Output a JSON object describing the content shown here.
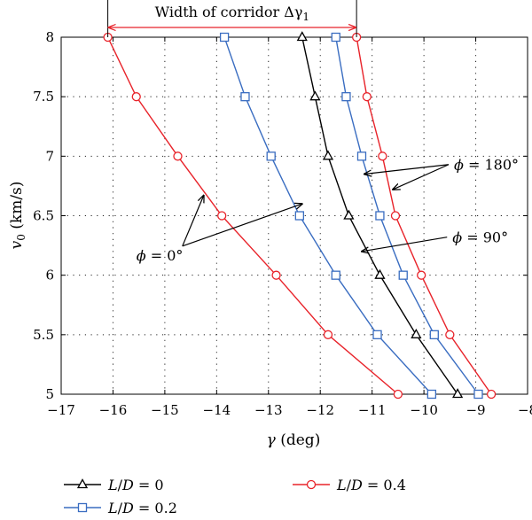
{
  "chart_data": {
    "type": "line",
    "xlabel_symbol": "γ",
    "xlabel_unit": " (deg)",
    "ylabel_symbol": "v",
    "ylabel_sub": "0",
    "ylabel_unit": " (km/s)",
    "xlim": [
      -17,
      -8
    ],
    "ylim": [
      5,
      8
    ],
    "xticks": [
      -17,
      -16,
      -15,
      -14,
      -13,
      -12,
      -11,
      -10,
      -9,
      -8
    ],
    "yticks": [
      5,
      5.5,
      6,
      6.5,
      7,
      7.5,
      8
    ],
    "xtick_labels": [
      "−17",
      "−16",
      "−15",
      "−14",
      "−13",
      "−12",
      "−11",
      "−10",
      "−9",
      "−8"
    ],
    "ytick_labels": [
      "5",
      "5.5",
      "6",
      "6.5",
      "7",
      "7.5",
      "8"
    ],
    "grid": true,
    "legend_position": "bottom",
    "series": [
      {
        "name": "L/D = 0",
        "name_parts": {
          "a": "L",
          "b": "/",
          "c": "D",
          "d": " = 0"
        },
        "color": "#000000",
        "marker": "triangle",
        "curves": [
          {
            "x": [
              -12.35,
              -12.1,
              -11.85,
              -11.45,
              -10.85,
              -10.15,
              -9.35
            ],
            "y": [
              8,
              7.5,
              7,
              6.5,
              6,
              5.5,
              5
            ]
          }
        ]
      },
      {
        "name": "L/D = 0.2",
        "name_parts": {
          "a": "L",
          "b": "/",
          "c": "D",
          "d": " = 0.2"
        },
        "color": "#3a6dc1",
        "marker": "square",
        "curves": [
          {
            "x": [
              -13.85,
              -13.45,
              -12.95,
              -12.4,
              -11.7,
              -10.9,
              -9.85
            ],
            "y": [
              8,
              7.5,
              7,
              6.5,
              6,
              5.5,
              5
            ]
          },
          {
            "x": [
              -11.7,
              -11.5,
              -11.2,
              -10.85,
              -10.4,
              -9.8,
              -8.95
            ],
            "y": [
              8,
              7.5,
              7,
              6.5,
              6,
              5.5,
              5
            ]
          }
        ]
      },
      {
        "name": "L/D = 0.4",
        "name_parts": {
          "a": "L",
          "b": "/",
          "c": "D",
          "d": " = 0.4"
        },
        "color": "#e8232a",
        "marker": "circle",
        "curves": [
          {
            "x": [
              -16.1,
              -15.55,
              -14.75,
              -13.9,
              -12.85,
              -11.85,
              -10.5
            ],
            "y": [
              8,
              7.5,
              7,
              6.5,
              6,
              5.5,
              5
            ]
          },
          {
            "x": [
              -11.3,
              -11.1,
              -10.8,
              -10.55,
              -10.05,
              -9.5,
              -8.7
            ],
            "y": [
              8,
              7.5,
              7,
              6.5,
              6,
              5.5,
              5
            ]
          }
        ]
      }
    ],
    "annotations": {
      "corridor": {
        "text": "Width of corridor  Δγ",
        "sub": "1",
        "x_from": -16.1,
        "x_to": -11.3
      },
      "phi0": {
        "phi": "ϕ",
        "text": " = 0°",
        "text_at": [
          -15.55,
          6.17
        ],
        "arrows_to": [
          [
            -14.25,
            6.67
          ],
          [
            -12.35,
            6.6
          ]
        ]
      },
      "phi180": {
        "phi": "ϕ",
        "text": " = 180°",
        "text_at": [
          -9.42,
          6.93
        ],
        "arrows_to": [
          [
            -11.15,
            6.85
          ],
          [
            -10.6,
            6.72
          ]
        ]
      },
      "phi90": {
        "phi": "ϕ",
        "text": " = 90°",
        "text_at": [
          -9.45,
          6.32
        ],
        "arrows_to": [
          [
            -11.2,
            6.2
          ]
        ]
      }
    }
  }
}
